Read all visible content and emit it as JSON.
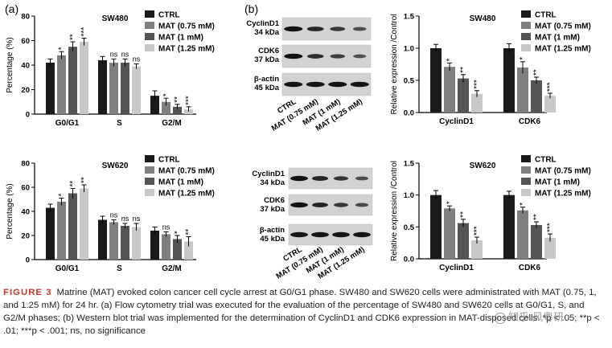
{
  "panels": {
    "a": "(a)",
    "b": "(b)"
  },
  "legend": {
    "entries": [
      "CTRL",
      "MAT (0.75 mM)",
      "MAT (1 mM)",
      "MAT (1.25 mM)"
    ],
    "colors": [
      "#1a1a1a",
      "#7f7f7f",
      "#555555",
      "#c8c8c8"
    ]
  },
  "western_blots": [
    {
      "cell_line": "SW480",
      "bands": [
        {
          "name": "CyclinD1",
          "size": "34 kDa"
        },
        {
          "name": "CDK6",
          "size": "37 kDa"
        },
        {
          "name": "β-actin",
          "size": "45 kDa"
        }
      ],
      "lanes": [
        "CTRL",
        "MAT (0.75 mM)",
        "MAT (1 mM)",
        "MAT (1.25 mM)"
      ]
    },
    {
      "cell_line": "SW620",
      "bands": [
        {
          "name": "CyclinD1",
          "size": "34 kDa"
        },
        {
          "name": "CDK6",
          "size": "37 kDa"
        },
        {
          "name": "β-actin",
          "size": "45 kDa"
        }
      ],
      "lanes": [
        "CTRL",
        "MAT (0.75 mM)",
        "MAT (1 mM)",
        "MAT (1.25 mM)"
      ]
    }
  ],
  "chart_data": [
    {
      "type": "bar",
      "title": "SW480",
      "ylabel": "Percentage (%)",
      "xlabel": "",
      "categories": [
        "G0/G1",
        "S",
        "G2/M"
      ],
      "ylim": [
        0,
        80
      ],
      "yticks": [
        0,
        20,
        40,
        60,
        80
      ],
      "series": [
        {
          "name": "CTRL",
          "values": [
            42,
            44,
            15
          ],
          "errors": [
            3,
            3,
            4
          ],
          "sig": [
            "",
            "",
            ""
          ]
        },
        {
          "name": "MAT (0.75 mM)",
          "values": [
            48,
            42,
            10
          ],
          "errors": [
            3,
            3,
            3
          ],
          "sig": [
            "*",
            "ns",
            "*"
          ]
        },
        {
          "name": "MAT (1 mM)",
          "values": [
            55,
            42,
            6
          ],
          "errors": [
            4,
            3,
            2
          ],
          "sig": [
            "**",
            "ns",
            "**"
          ]
        },
        {
          "name": "MAT (1.25 mM)",
          "values": [
            59,
            39,
            4
          ],
          "errors": [
            3,
            2,
            2
          ],
          "sig": [
            "***",
            "ns",
            "***"
          ]
        }
      ]
    },
    {
      "type": "bar",
      "title": "SW480",
      "ylabel": "Relative expression /Control",
      "xlabel": "",
      "categories": [
        "CyclinD1",
        "CDK6"
      ],
      "ylim": [
        0,
        1.5
      ],
      "yticks": [
        0.0,
        0.5,
        1.0,
        1.5
      ],
      "series": [
        {
          "name": "CTRL",
          "values": [
            1.0,
            1.0
          ],
          "errors": [
            0.06,
            0.07
          ],
          "sig": [
            "",
            ""
          ]
        },
        {
          "name": "MAT (0.75 mM)",
          "values": [
            0.71,
            0.7
          ],
          "errors": [
            0.06,
            0.09
          ],
          "sig": [
            "*",
            "*"
          ]
        },
        {
          "name": "MAT (1 mM)",
          "values": [
            0.53,
            0.5
          ],
          "errors": [
            0.06,
            0.05
          ],
          "sig": [
            "**",
            "**"
          ]
        },
        {
          "name": "MAT (1.25 mM)",
          "values": [
            0.29,
            0.26
          ],
          "errors": [
            0.05,
            0.04
          ],
          "sig": [
            "***",
            "***"
          ]
        }
      ]
    },
    {
      "type": "bar",
      "title": "SW620",
      "ylabel": "Percentage (%)",
      "xlabel": "",
      "categories": [
        "G0/G1",
        "S",
        "G2/M"
      ],
      "ylim": [
        0,
        80
      ],
      "yticks": [
        0,
        20,
        40,
        60,
        80
      ],
      "series": [
        {
          "name": "CTRL",
          "values": [
            43,
            33,
            24
          ],
          "errors": [
            3,
            3,
            3
          ],
          "sig": [
            "",
            "",
            ""
          ]
        },
        {
          "name": "MAT (0.75 mM)",
          "values": [
            48,
            31,
            21
          ],
          "errors": [
            3,
            2,
            2
          ],
          "sig": [
            "*",
            "ns",
            "ns"
          ]
        },
        {
          "name": "MAT (1 mM)",
          "values": [
            55,
            28,
            17
          ],
          "errors": [
            4,
            2,
            3
          ],
          "sig": [
            "**",
            "ns",
            "*"
          ]
        },
        {
          "name": "MAT (1.25 mM)",
          "values": [
            59,
            27,
            15
          ],
          "errors": [
            3,
            3,
            4
          ],
          "sig": [
            "**",
            "ns",
            "**"
          ]
        }
      ]
    },
    {
      "type": "bar",
      "title": "SW620",
      "ylabel": "Relative expression /Control",
      "xlabel": "",
      "categories": [
        "CyclinD1",
        "CDK6"
      ],
      "ylim": [
        0,
        1.5
      ],
      "yticks": [
        0.0,
        0.5,
        1.0,
        1.5
      ],
      "series": [
        {
          "name": "CTRL",
          "values": [
            1.0,
            1.0
          ],
          "errors": [
            0.07,
            0.06
          ],
          "sig": [
            "",
            ""
          ]
        },
        {
          "name": "MAT (0.75 mM)",
          "values": [
            0.79,
            0.76
          ],
          "errors": [
            0.04,
            0.05
          ],
          "sig": [
            "*",
            "*"
          ]
        },
        {
          "name": "MAT (1 mM)",
          "values": [
            0.56,
            0.53
          ],
          "errors": [
            0.06,
            0.05
          ],
          "sig": [
            "**",
            "**"
          ]
        },
        {
          "name": "MAT (1.25 mM)",
          "values": [
            0.29,
            0.33
          ],
          "errors": [
            0.05,
            0.06
          ],
          "sig": [
            "***",
            "***"
          ]
        }
      ]
    }
  ],
  "caption": {
    "label": "FIGURE 3",
    "text": "Matrine (MAT) evoked colon cancer cell cycle arrest at G0/G1 phase. SW480 and SW620 cells were administrated with MAT (0.75, 1, and 1.25 mM) for 24 hr. (a) Flow cytometry trial was executed for the evaluation of the percentage of SW480 and SW620 cells at G0/G1, S, and G2/M phases; (b) Western blot trial was implemented for the determination of CyclinD1 and CDK6 expression in MAT-disposed cells. *p < .05; **p < .01; ***p < .001; ns, no significance"
  },
  "watermark": "知乎 风粤研"
}
